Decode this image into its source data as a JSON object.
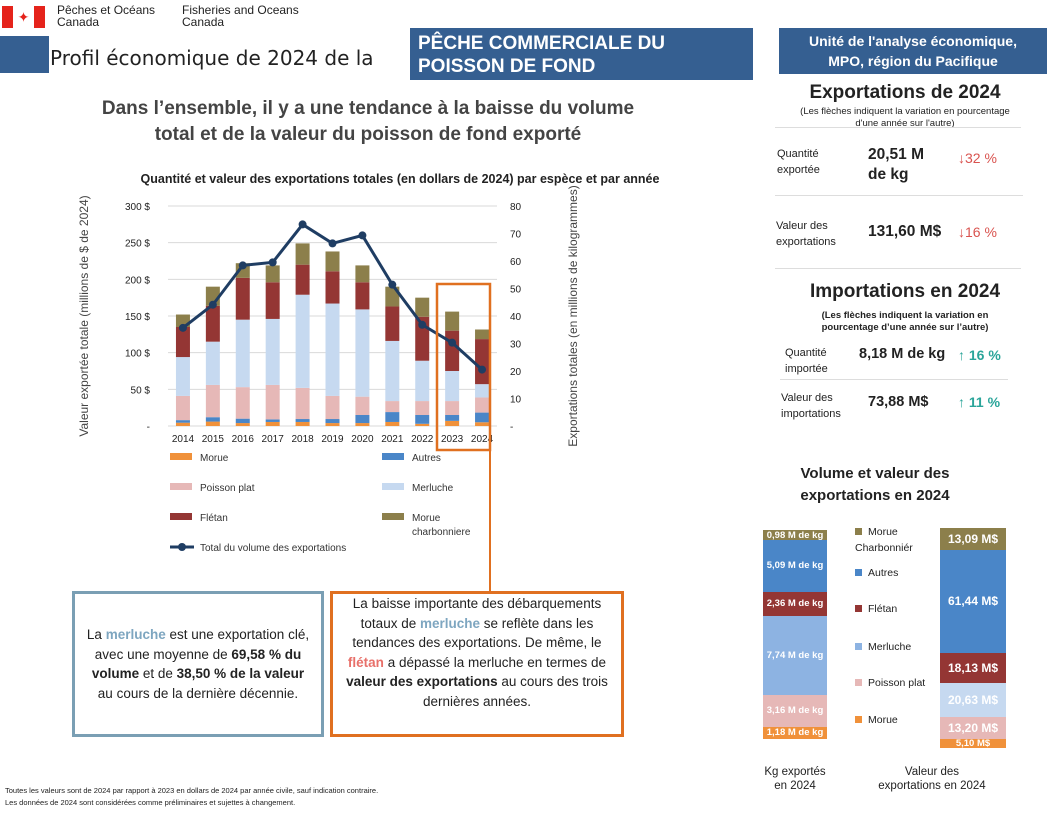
{
  "header": {
    "dept_fr": [
      "Pêches et Océans",
      "Canada"
    ],
    "dept_en": [
      "Fisheries and Oceans",
      "Canada"
    ],
    "title": "Profil économique de 2024 de la",
    "fishery": [
      "PÊCHE COMMERCIALE DU",
      "POISSON DE FOND"
    ],
    "unit": [
      "Unité de l'analyse économique,",
      "MPO, région du Pacifique"
    ]
  },
  "headline": [
    "Dans l’ensemble, il y a une tendance à la baisse du volume",
    "total et de la valeur du poisson de fond exporté"
  ],
  "colors": {
    "morue": "#f0913a",
    "autres": "#4a86c8",
    "poisson_plat": "#e6b8b7",
    "merluche": "#c6d9f0",
    "fletan": "#943634",
    "charbonniere": "#8c7f4b",
    "line": "#1f3d63",
    "accent_blue": "#355f91",
    "highlight": "#e07020"
  },
  "chart_data": {
    "type": "bar",
    "title": "Quantité et valeur des exportations totales (en dollars de 2024) par espèce et par année",
    "ylabel": "Valeur exportée totale (millions de $ de 2024)",
    "y2label": "Exportations totales (en millions de kilogrammes)",
    "ylim": [
      0,
      300
    ],
    "y2lim": [
      0,
      80
    ],
    "yticks": [
      "-",
      "50 $",
      "100 $",
      "150 $",
      "200 $",
      "250 $",
      "300 $"
    ],
    "y2ticks": [
      "-",
      "10",
      "20",
      "30",
      "40",
      "50",
      "60",
      "70",
      "80"
    ],
    "categories": [
      "2014",
      "2015",
      "2016",
      "2017",
      "2018",
      "2019",
      "2020",
      "2021",
      "2022",
      "2023",
      "2024"
    ],
    "series": [
      {
        "name": "Morue",
        "key": "morue",
        "values": [
          4.5,
          6,
          4,
          5.5,
          5.5,
          4,
          4,
          5.5,
          3,
          7,
          5.1
        ]
      },
      {
        "name": "Autres",
        "key": "autres",
        "values": [
          3.5,
          6,
          6,
          3.5,
          4,
          5.5,
          11,
          13.5,
          12,
          8,
          13.2
        ]
      },
      {
        "name": "Poisson plat",
        "key": "poisson_plat",
        "values": [
          33,
          44,
          43,
          47,
          42.5,
          31.5,
          25,
          15,
          19,
          19,
          20.63
        ]
      },
      {
        "name": "Merluche",
        "key": "merluche",
        "values": [
          53,
          59,
          92,
          90,
          127,
          126,
          119,
          82,
          55,
          41,
          18.13
        ]
      },
      {
        "name": "Flétan",
        "key": "fletan",
        "values": [
          41,
          49,
          57,
          50,
          41,
          44,
          37,
          47,
          60,
          55,
          61.44
        ]
      },
      {
        "name": "Morue charbonniere",
        "key": "charbonniere",
        "values": [
          17,
          26,
          20,
          23,
          29,
          27,
          23,
          27,
          26,
          26,
          13.09
        ]
      }
    ],
    "line": {
      "name": "Total du volume des exportations",
      "axis": "right",
      "values": [
        35.7,
        44.1,
        58.4,
        59.5,
        73.3,
        66.4,
        69.3,
        51.4,
        36.8,
        30.3,
        20.51
      ]
    },
    "grid": true,
    "legend": "bottom",
    "highlight": [
      "2023",
      "2024"
    ]
  },
  "notes": {
    "left": [
      {
        "t": "La "
      },
      {
        "t": "merluche",
        "c": "hake"
      },
      {
        "t": " est une exportation clé, avec une moyenne de "
      },
      {
        "t": "69,58 % du volume",
        "b": 1
      },
      {
        "t": " et de "
      },
      {
        "t": "38,50 % de la valeur",
        "b": 1
      },
      {
        "t": " au cours de la dernière décennie."
      }
    ],
    "right": [
      {
        "t": "La baisse importante des débarquements totaux de "
      },
      {
        "t": "merluche",
        "c": "hake"
      },
      {
        "t": " se reflète dans les tendances des exportations. De même, le "
      },
      {
        "t": "flétan",
        "c": "hal"
      },
      {
        "t": " a dépassé la merluche en termes de "
      },
      {
        "t": "valeur des exportations",
        "b": 1
      },
      {
        "t": " au cours des trois dernières années."
      }
    ]
  },
  "footnote": [
    "Toutes les valeurs sont de 2024 par rapport à 2023 en dollars de 2024 par année civile, sauf indication contraire.",
    "Les données de 2024 sont considérées comme préliminaires et sujettes à changement."
  ],
  "exports": {
    "title": "Exportations de 2024",
    "subtitle": [
      "(Les flèches indiquent la variation en pourcentage",
      "d'une année sur l'autre)"
    ],
    "qty_label": [
      "Quantité",
      "exportée"
    ],
    "qty_value": [
      "20,51 M",
      "de kg"
    ],
    "qty_change": "↓32 %",
    "val_label": [
      "Valeur des",
      "exportations"
    ],
    "val_value": "131,60 M$",
    "val_change": "↓16 %"
  },
  "imports": {
    "title": "Importations en 2024",
    "subtitle": [
      "(Les flèches indiquent la variation en",
      "pourcentage d’une année sur l’autre)"
    ],
    "qty_label": [
      "Quantité",
      "importée"
    ],
    "qty_value": "8,18 M de kg",
    "qty_change": "↑ 16 %",
    "val_label": [
      "Valeur des",
      "importations"
    ],
    "val_value": "73,88 M$",
    "val_change": "↑ 11 %"
  },
  "breakdown": {
    "title": [
      "Volume et valeur des",
      "exportations en 2024"
    ],
    "legend": [
      "Morue Charbonniér",
      "Autres",
      "Flétan",
      "Merluche",
      "Poisson plat",
      "Morue"
    ],
    "kg_caption": [
      "Kg exportés",
      "en 2024"
    ],
    "value_caption": [
      "Valeur des",
      "exportations en 2024"
    ],
    "kg": [
      {
        "label": "0,98 M de kg",
        "value": 0.98
      },
      {
        "label": "5,09 M de kg",
        "value": 5.09
      },
      {
        "label": "2,36 M de kg",
        "value": 2.36
      },
      {
        "label": "7,74 M de kg",
        "value": 7.74
      },
      {
        "label": "3,16 M de kg",
        "value": 3.16
      },
      {
        "label": "1,18 M de kg",
        "value": 1.18
      }
    ],
    "value": [
      {
        "label": "13,09 M$",
        "value": 13.09
      },
      {
        "label": "61,44 M$",
        "value": 61.44
      },
      {
        "label": "18,13 M$",
        "value": 18.13
      },
      {
        "label": "20,63 M$",
        "value": 20.63
      },
      {
        "label": "13,20 M$",
        "value": 13.2
      },
      {
        "label": "5,10 M$",
        "value": 5.1
      }
    ]
  }
}
